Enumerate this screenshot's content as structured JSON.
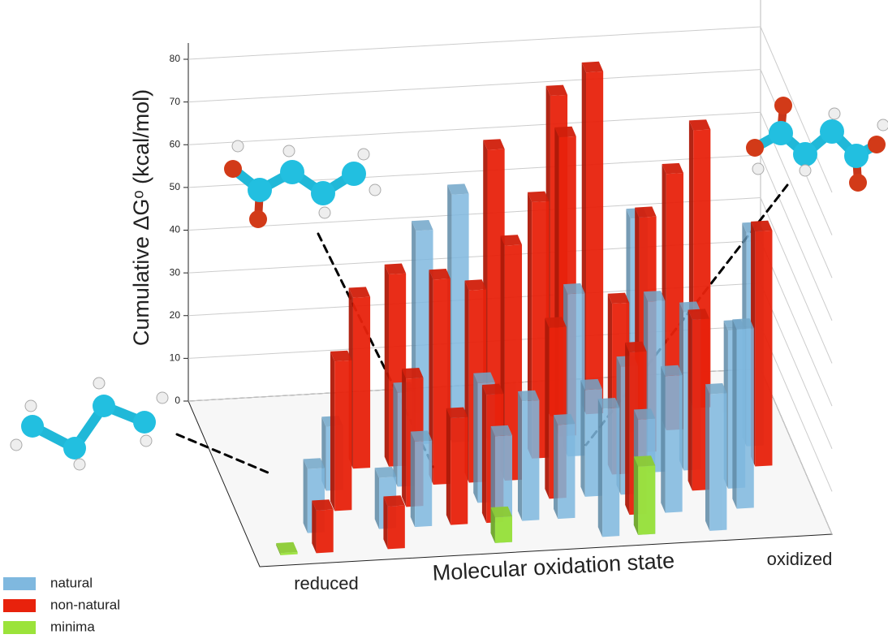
{
  "chart_data": {
    "type": "bar3d",
    "ylabel": "Cumulative ΔGᵒ (kcal/mol)",
    "xlabel": "Molecular oxidation state",
    "xstart_label": "reduced",
    "xend_label": "oxidized",
    "ylim": [
      0,
      80
    ],
    "yticks": [
      0,
      10,
      20,
      30,
      40,
      50,
      60,
      70,
      80
    ],
    "grid": true,
    "series": [
      {
        "name": "natural",
        "color": "#7fb8df",
        "x": [
          1,
          2,
          3,
          4,
          5,
          4,
          6,
          6,
          7,
          6,
          8,
          9,
          9,
          9,
          10,
          11,
          10,
          11,
          12,
          12,
          13,
          14,
          13,
          11
        ],
        "depth": [
          1,
          3,
          1,
          3,
          5,
          1,
          5,
          2,
          1,
          0,
          1,
          2,
          0,
          4,
          2,
          1,
          0,
          5,
          3,
          0,
          2,
          4,
          1,
          3
        ],
        "values": [
          15,
          15,
          12,
          22,
          50,
          20,
          58,
          28,
          28,
          25,
          22,
          25,
          30,
          38,
          30,
          32,
          27,
          50,
          37,
          32,
          37,
          50,
          42,
          40
        ]
      },
      {
        "name": "non-natural",
        "color": "#e8220c",
        "x": [
          1,
          3,
          2,
          3,
          4,
          4,
          5,
          5,
          6,
          6,
          7,
          7,
          8,
          8,
          9,
          9,
          10,
          10,
          10,
          11,
          12,
          12,
          13,
          14
        ],
        "depth": [
          0,
          0,
          2,
          4,
          2,
          4,
          3,
          1,
          3,
          1,
          5,
          3,
          4,
          2,
          6,
          5,
          3,
          1,
          6,
          4,
          2,
          5,
          6,
          3
        ],
        "values": [
          10,
          10,
          35,
          40,
          30,
          45,
          48,
          25,
          45,
          30,
          68,
          55,
          60,
          40,
          75,
          70,
          40,
          38,
          80,
          55,
          40,
          60,
          65,
          55
        ]
      },
      {
        "name": "minima",
        "color": "#9be33a",
        "x": [
          0,
          6,
          10
        ],
        "depth": [
          0,
          0,
          0
        ],
        "values": [
          0.5,
          6,
          16
        ]
      }
    ]
  }
}
